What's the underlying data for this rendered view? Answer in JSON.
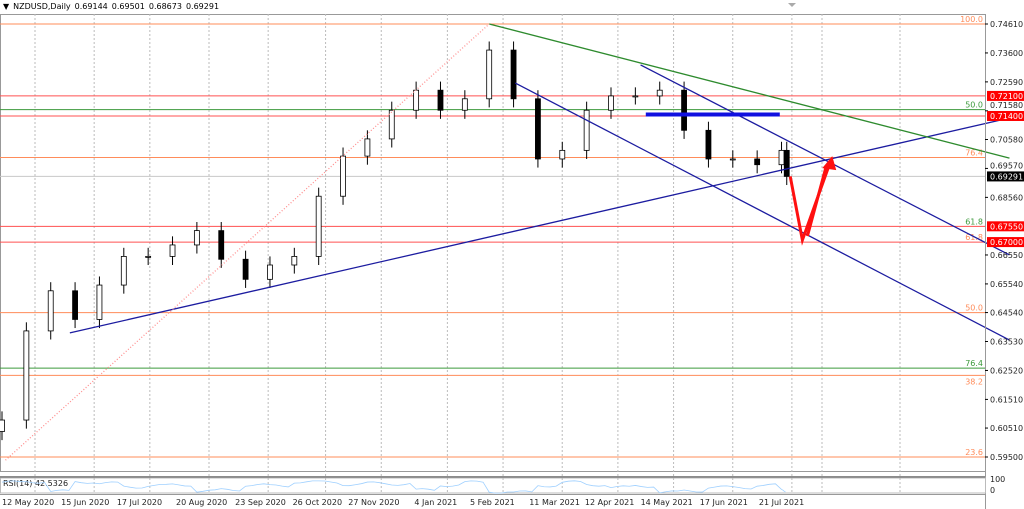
{
  "header": {
    "symbol": "NZDUSD,Daily",
    "open": "0.69144",
    "high": "0.69501",
    "low": "0.68673",
    "close": "0.69291"
  },
  "chart_data": {
    "type": "candlestick",
    "symbol": "NZDUSD",
    "timeframe": "Daily",
    "ylim": [
      0.59,
      0.75
    ],
    "y_ticks": [
      "0.74610",
      "0.73600",
      "0.72590",
      "0.71580",
      "0.70580",
      "0.69570",
      "0.68560",
      "0.66550",
      "0.65540",
      "0.64540",
      "0.63530",
      "0.62520",
      "0.61510",
      "0.60510",
      "0.59500"
    ],
    "x_ticks": [
      "12 May 2020",
      "15 Jun 2020",
      "17 Jul 2020",
      "20 Aug 2020",
      "23 Sep 2020",
      "26 Oct 2020",
      "27 Nov 2020",
      "4 Jan 2021",
      "5 Feb 2021",
      "11 Mar 2021",
      "12 Apr 2021",
      "14 May 2021",
      "17 Jun 2021",
      "21 Jul 2021"
    ],
    "x_tick_dates": [
      "2020-05-12",
      "2020-06-15",
      "2020-07-17",
      "2020-08-20",
      "2020-09-23",
      "2020-10-26",
      "2020-11-27",
      "2021-01-04",
      "2021-02-05",
      "2021-03-11",
      "2021-04-12",
      "2021-05-14",
      "2021-06-17",
      "2021-07-21"
    ],
    "x": [
      "2020-05-12",
      "2020-05-26",
      "2020-06-09",
      "2020-06-23",
      "2020-07-07",
      "2020-07-21",
      "2020-08-04",
      "2020-08-18",
      "2020-09-01",
      "2020-09-15",
      "2020-09-29",
      "2020-10-13",
      "2020-10-27",
      "2020-11-10",
      "2020-11-24",
      "2020-12-08",
      "2020-12-22",
      "2021-01-05",
      "2021-01-19",
      "2021-02-02",
      "2021-02-16",
      "2021-03-02",
      "2021-03-16",
      "2021-03-30",
      "2021-04-13",
      "2021-04-27",
      "2021-05-11",
      "2021-05-25",
      "2021-06-08",
      "2021-06-22",
      "2021-07-06",
      "2021-07-20",
      "2021-08-03",
      "2021-08-06"
    ],
    "close": [
      0.6079,
      0.639,
      0.653,
      0.643,
      0.655,
      0.665,
      0.665,
      0.669,
      0.674,
      0.664,
      0.657,
      0.662,
      0.665,
      0.686,
      0.7,
      0.706,
      0.716,
      0.723,
      0.716,
      0.72,
      0.737,
      0.72,
      0.699,
      0.702,
      0.716,
      0.721,
      0.721,
      0.723,
      0.709,
      0.699,
      0.699,
      0.697,
      0.702,
      0.69291
    ],
    "current_price": "0.69291",
    "price_labels": [
      {
        "text": "0.72100",
        "price": 0.721,
        "color": "#ff0000"
      },
      {
        "text": "0.71400",
        "price": 0.714,
        "color": "#ff0000"
      },
      {
        "text": "0.67550",
        "price": 0.6755,
        "color": "#ff0000"
      },
      {
        "text": "0.67000",
        "price": 0.67,
        "color": "#ff0000"
      },
      {
        "text": "0.69291",
        "price": 0.69291,
        "color": "#000000"
      }
    ],
    "levels": [
      {
        "price": 0.7461,
        "label": "100.0",
        "color": "#ff8c5a"
      },
      {
        "price": 0.721,
        "label": "",
        "color": "#ff5050"
      },
      {
        "price": 0.7162,
        "label": "50.0",
        "color": "#3c9a3c"
      },
      {
        "price": 0.714,
        "label": "",
        "color": "#ff5050"
      },
      {
        "price": 0.6995,
        "label": "76.4",
        "color": "#ff8c5a"
      },
      {
        "price": 0.6755,
        "label": "61.8",
        "color": "#3c9a3c",
        "line_color": "#ff5050"
      },
      {
        "price": 0.67,
        "label": "61.8",
        "color": "#ff8c5a",
        "line_color": "#ff5050"
      },
      {
        "price": 0.6454,
        "label": "50.0",
        "color": "#ff8c5a"
      },
      {
        "price": 0.626,
        "label": "76.4",
        "color": "#3c9a3c"
      },
      {
        "price": 0.6235,
        "label": "38.2",
        "color": "#ff8c5a"
      },
      {
        "price": 0.595,
        "label": "23.6",
        "color": "#ff8c5a"
      }
    ],
    "trendlines": [
      {
        "from": [
          "2020-06-20",
          0.6383
        ],
        "to": [
          "2021-12-12",
          0.7133
        ],
        "color": "#1c1ca0"
      },
      {
        "from": [
          "2021-02-16",
          0.7461
        ],
        "to": [
          "2021-12-12",
          0.6993
        ],
        "color": "#2e8b2e"
      },
      {
        "from": [
          "2021-05-14",
          0.7318
        ],
        "to": [
          "2021-12-12",
          0.6655
        ],
        "color": "#1c1ca0"
      },
      {
        "from": [
          "2021-03-03",
          0.7255
        ],
        "to": [
          "2021-12-12",
          0.6358
        ],
        "color": "#1c1ca0"
      },
      {
        "from": [
          "2021-05-17",
          0.7145
        ],
        "to": [
          "2021-08-02",
          0.7145
        ],
        "color": "#1010e0",
        "thick": true
      },
      {
        "from": [
          "2020-05-14",
          0.5939
        ],
        "to": [
          "2021-02-16",
          0.7461
        ],
        "color": "#ff9090",
        "dotted": true
      }
    ],
    "arrows": [
      {
        "points": [
          [
            "2021-08-08",
            0.6929
          ],
          [
            "2021-08-15",
            0.6707
          ],
          [
            "2021-08-31",
            0.6979
          ]
        ],
        "color": "#ff1010"
      }
    ],
    "indicator": {
      "label": "RSI(14) 42.5326",
      "levels": [
        "100",
        "0"
      ],
      "color": "#9fd0ff"
    },
    "grid": true
  }
}
